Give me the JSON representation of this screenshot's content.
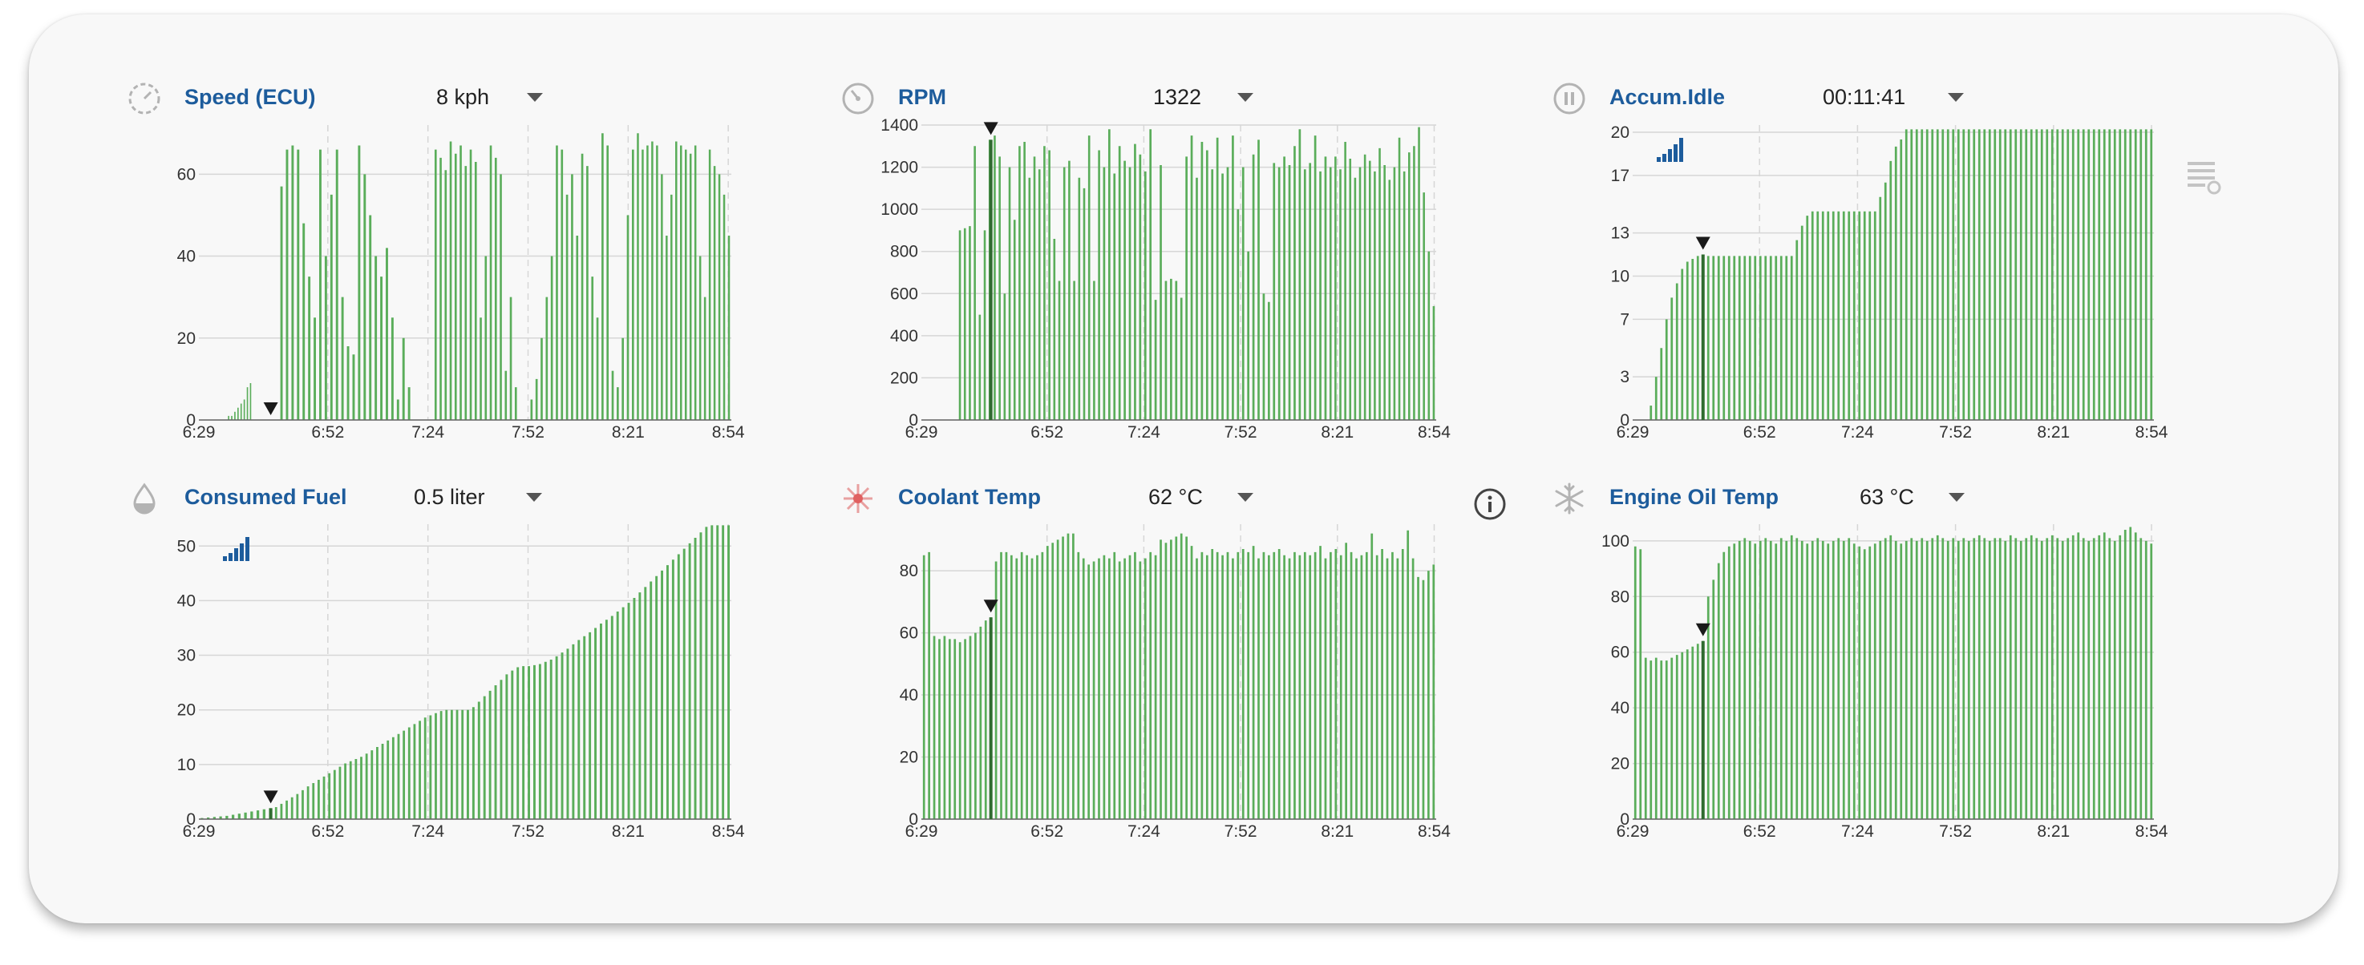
{
  "colors": {
    "title": "#1d5c9c",
    "bar": "#5aad5a",
    "bar_dark": "#2f6b2f",
    "grid": "#d6d6d6",
    "axis": "#666666",
    "marker": "#1a1a1a",
    "signal": "#1d5c9c",
    "coolant_icon": "#e06060",
    "muted_icon": "#b3b3b3"
  },
  "widgets": [
    {
      "title": "Speed (ECU)",
      "value": "8 kph",
      "icon": "speedometer-icon",
      "signal_icon": false,
      "chart_data": {
        "type": "bar",
        "x_ticks": [
          "6:29",
          "6:52",
          "7:24",
          "7:52",
          "8:21",
          "8:54"
        ],
        "y_ticks": [
          "0",
          "20",
          "40",
          "60"
        ],
        "ylim": [
          0,
          72
        ],
        "marker_at": "6:50",
        "segments": [
          {
            "from": 0.0,
            "to": 0.1,
            "v": [
              0,
              0,
              0,
              0,
              0,
              0,
              0,
              0,
              0,
              1,
              1,
              2,
              3,
              4,
              5,
              8,
              9
            ]
          },
          {
            "from": 0.15,
            "to": 0.4,
            "v": [
              57,
              66,
              67,
              66,
              48,
              35,
              25,
              66,
              40,
              55,
              66,
              30,
              18,
              16,
              67,
              60,
              50,
              40,
              35,
              42,
              25,
              5,
              20,
              8
            ]
          },
          {
            "from": 0.44,
            "to": 0.6,
            "v": [
              66,
              64,
              61,
              68,
              65,
              67,
              62,
              66,
              63,
              25,
              40,
              67,
              64,
              60,
              12,
              30,
              8
            ]
          },
          {
            "from": 0.62,
            "to": 0.82,
            "v": [
              5,
              10,
              20,
              30,
              40,
              67,
              66,
              55,
              60,
              45,
              65,
              62,
              35,
              25,
              70,
              67,
              12,
              8,
              20,
              50,
              66
            ]
          },
          {
            "from": 0.82,
            "to": 1.0,
            "v": [
              70,
              66,
              67,
              68,
              67,
              60,
              45,
              55,
              68,
              67,
              66,
              65,
              67,
              40,
              30,
              66,
              62,
              60,
              55,
              45
            ]
          }
        ]
      }
    },
    {
      "title": "RPM",
      "value": "1322",
      "icon": "tachometer-icon",
      "signal_icon": false,
      "chart_data": {
        "type": "bar",
        "x_ticks": [
          "6:29",
          "6:52",
          "7:24",
          "7:52",
          "8:21",
          "8:54"
        ],
        "y_ticks": [
          "0",
          "200",
          "400",
          "600",
          "800",
          "1000",
          "1200",
          "1400"
        ],
        "ylim": [
          0,
          1400
        ],
        "marker_at": "6:50",
        "segments": [
          {
            "from": 0.0,
            "to": 0.06,
            "v": [
              0,
              0,
              0,
              0,
              0
            ]
          },
          {
            "from": 0.07,
            "to": 0.35,
            "v": [
              900,
              910,
              920,
              1300,
              500,
              900,
              1330,
              1350,
              1250,
              600,
              1200,
              950,
              1300,
              1320,
              1150,
              1250,
              1190,
              1300,
              1280,
              860,
              660,
              1200,
              1230,
              660,
              1150,
              1100,
              1350,
              660,
              1280
            ]
          },
          {
            "from": 0.35,
            "to": 0.55,
            "v": [
              1200,
              1380,
              1170,
              1300,
              1230,
              1200,
              1310,
              1260,
              1180,
              1380,
              570,
              1210,
              660,
              670,
              660,
              580,
              1250,
              1350,
              1150,
              1320
            ]
          },
          {
            "from": 0.55,
            "to": 0.79,
            "v": [
              1280,
              1190,
              1340,
              1170,
              1200,
              1350,
              1000,
              1200,
              800,
              1260,
              1330,
              600,
              560,
              1220,
              1200,
              1250,
              1210,
              1300,
              1380,
              1190,
              1220,
              1350,
              1180,
              1250
            ]
          },
          {
            "from": 0.79,
            "to": 1.0,
            "v": [
              1200,
              1250,
              1190,
              1320,
              1240,
              1150,
              1200,
              1260,
              1230,
              1180,
              1290,
              1210,
              1140,
              1200,
              1340,
              1180,
              1270,
              1300,
              1390,
              1080,
              800,
              540
            ]
          }
        ]
      }
    },
    {
      "title": "Accum.Idle",
      "value": "00:11:41",
      "icon": "pause-icon",
      "signal_icon": true,
      "chart_data": {
        "type": "bar",
        "x_ticks": [
          "6:29",
          "6:52",
          "7:24",
          "7:52",
          "8:21",
          "8:54"
        ],
        "y_ticks": [
          "0",
          "3",
          "7",
          "10",
          "13",
          "17",
          "20"
        ],
        "ylim": [
          0,
          20.5
        ],
        "marker_at": "6:50",
        "segments": [
          {
            "from": 0.0,
            "to": 0.03,
            "v": [
              0,
              0
            ]
          },
          {
            "from": 0.03,
            "to": 0.14,
            "v": [
              1,
              3,
              5,
              7,
              8.5,
              9.5,
              10.5,
              11,
              11.2,
              11.4,
              11.5
            ]
          },
          {
            "from": 0.14,
            "to": 0.31,
            "v": [
              11.4,
              11.4,
              11.4,
              11.4,
              11.4,
              11.4,
              11.4,
              11.4,
              11.4,
              11.4,
              11.4,
              11.4,
              11.4,
              11.4,
              11.4,
              11.4,
              11.4
            ]
          },
          {
            "from": 0.31,
            "to": 0.48,
            "v": [
              12.5,
              13.5,
              14.2,
              14.5,
              14.5,
              14.5,
              14.5,
              14.5,
              14.5,
              14.5,
              14.5,
              14.5,
              14.5,
              14.5,
              14.5,
              14.5,
              15.5
            ]
          },
          {
            "from": 0.48,
            "to": 0.52,
            "v": [
              16.5,
              18,
              19,
              19.5
            ]
          },
          {
            "from": 0.52,
            "to": 1.0,
            "v": [
              20.2,
              20.2,
              20.2,
              20.2,
              20.2,
              20.2,
              20.2,
              20.2,
              20.2,
              20.2,
              20.2,
              20.2,
              20.2,
              20.2,
              20.2,
              20.2,
              20.2,
              20.2,
              20.2,
              20.2,
              20.2,
              20.2,
              20.2,
              20.2,
              20.2,
              20.2,
              20.2,
              20.2,
              20.2,
              20.2,
              20.2,
              20.2,
              20.2,
              20.2,
              20.2,
              20.2,
              20.2,
              20.2,
              20.2,
              20.2,
              20.2,
              20.2,
              20.2,
              20.2,
              20.2,
              20.2,
              20.2,
              20.2
            ]
          }
        ]
      }
    },
    {
      "title": "Consumed Fuel",
      "value": "0.5 liter",
      "icon": "fuel-drop-icon",
      "signal_icon": true,
      "chart_data": {
        "type": "bar",
        "x_ticks": [
          "6:29",
          "6:52",
          "7:24",
          "7:52",
          "8:21",
          "8:54"
        ],
        "y_ticks": [
          "0",
          "10",
          "20",
          "30",
          "40",
          "50"
        ],
        "ylim": [
          0,
          54
        ],
        "marker_at": "6:50",
        "segments": [
          {
            "from": 0.0,
            "to": 0.14,
            "v": [
              0.2,
              0.3,
              0.4,
              0.5,
              0.6,
              0.8,
              1,
              1.2,
              1.4,
              1.6,
              1.8,
              2
            ]
          },
          {
            "from": 0.14,
            "to": 0.5,
            "v": [
              2.2,
              2.8,
              3.4,
              4,
              4.6,
              5.3,
              6,
              6.6,
              7.2,
              7.8,
              8.4,
              9,
              9.6,
              10.2,
              10.6,
              11,
              11.4,
              12,
              12.6,
              13.2,
              13.8,
              14.4,
              15,
              15.6,
              16.2,
              16.8,
              17.4,
              18,
              18.6,
              19,
              19.4,
              19.8,
              20,
              20,
              20,
              20
            ]
          },
          {
            "from": 0.5,
            "to": 0.75,
            "v": [
              20,
              20.5,
              21.5,
              22.5,
              23.5,
              24.5,
              25.5,
              26.5,
              27.2,
              27.8,
              28,
              28,
              28.2,
              28.4,
              28.8,
              29.2,
              29.8,
              30.5,
              31.2,
              32,
              32.8,
              33.5,
              34.2,
              35
            ]
          },
          {
            "from": 0.75,
            "to": 1.0,
            "v": [
              35.8,
              36.5,
              37.2,
              38,
              38.8,
              39.6,
              40.5,
              41.5,
              42.5,
              43.5,
              44.5,
              45.5,
              46.5,
              47.5,
              48.5,
              49.5,
              50.5,
              51.5,
              52.5,
              53.5,
              53.8,
              53.8,
              53.8,
              53.8
            ]
          }
        ]
      }
    },
    {
      "title": "Coolant Temp",
      "value": "62 °C",
      "icon": "coolant-icon",
      "signal_icon": false,
      "chart_data": {
        "type": "bar",
        "x_ticks": [
          "6:29",
          "6:52",
          "7:24",
          "7:52",
          "8:21",
          "8:54"
        ],
        "y_ticks": [
          "0",
          "20",
          "40",
          "60",
          "80"
        ],
        "ylim": [
          0,
          95
        ],
        "marker_at": "6:50",
        "segments": [
          {
            "from": 0.0,
            "to": 0.02,
            "v": [
              85,
              86
            ]
          },
          {
            "from": 0.02,
            "to": 0.14,
            "v": [
              59,
              58,
              59,
              58,
              58,
              57,
              58,
              59,
              60,
              62,
              64,
              65
            ]
          },
          {
            "from": 0.14,
            "to": 0.42,
            "v": [
              83,
              86,
              86,
              85,
              84,
              86,
              85,
              84,
              85,
              86,
              88,
              89,
              90,
              91,
              92,
              92,
              86,
              84,
              82,
              83,
              84,
              85,
              84,
              86,
              83,
              84,
              85,
              86
            ]
          },
          {
            "from": 0.42,
            "to": 0.75,
            "v": [
              83,
              84,
              86,
              85,
              90,
              89,
              90,
              91,
              92,
              91,
              88,
              84,
              86,
              85,
              87,
              86,
              85,
              86,
              84,
              86,
              87,
              86,
              88,
              84,
              86,
              85,
              86,
              87,
              85,
              84,
              86,
              85,
              86
            ]
          },
          {
            "from": 0.75,
            "to": 1.0,
            "v": [
              85,
              86,
              88,
              84,
              86,
              87,
              85,
              89,
              86,
              84,
              85,
              86,
              92,
              85,
              87,
              84,
              86,
              84,
              87,
              93,
              84,
              78,
              77,
              80,
              82
            ]
          }
        ]
      }
    },
    {
      "title": "Engine Oil Temp",
      "value": "63 °C",
      "icon": "snowflake-icon",
      "signal_icon": false,
      "chart_data": {
        "type": "bar",
        "x_ticks": [
          "6:29",
          "6:52",
          "7:24",
          "7:52",
          "8:21",
          "8:54"
        ],
        "y_ticks": [
          "0",
          "20",
          "40",
          "60",
          "80",
          "100"
        ],
        "ylim": [
          0,
          106
        ],
        "marker_at": "6:50",
        "segments": [
          {
            "from": 0.0,
            "to": 0.02,
            "v": [
              98,
              97
            ]
          },
          {
            "from": 0.02,
            "to": 0.14,
            "v": [
              58,
              57,
              58,
              57,
              57,
              58,
              59,
              60,
              61,
              62,
              63,
              64
            ]
          },
          {
            "from": 0.14,
            "to": 0.42,
            "v": [
              80,
              86,
              92,
              96,
              98,
              99,
              100,
              101,
              100,
              99,
              100,
              101,
              100,
              99,
              101,
              100,
              102,
              101,
              100,
              99,
              100,
              101,
              100,
              99,
              100,
              101,
              100,
              101
            ]
          },
          {
            "from": 0.42,
            "to": 0.7,
            "v": [
              99,
              98,
              97,
              98,
              99,
              100,
              101,
              102,
              100,
              99,
              100,
              101,
              100,
              101,
              100,
              101,
              102,
              101,
              100,
              101,
              100,
              101,
              100,
              101,
              102,
              101,
              100,
              101
            ]
          },
          {
            "from": 0.7,
            "to": 1.0,
            "v": [
              101,
              100,
              102,
              101,
              100,
              101,
              102,
              101,
              100,
              101,
              102,
              101,
              100,
              101,
              102,
              103,
              101,
              100,
              101,
              102,
              103,
              101,
              100,
              102,
              104,
              105,
              103,
              101,
              100,
              99
            ]
          }
        ]
      }
    }
  ],
  "side_controls": {
    "info_icon": "info-icon",
    "menu_icon": "list-settings-icon"
  }
}
